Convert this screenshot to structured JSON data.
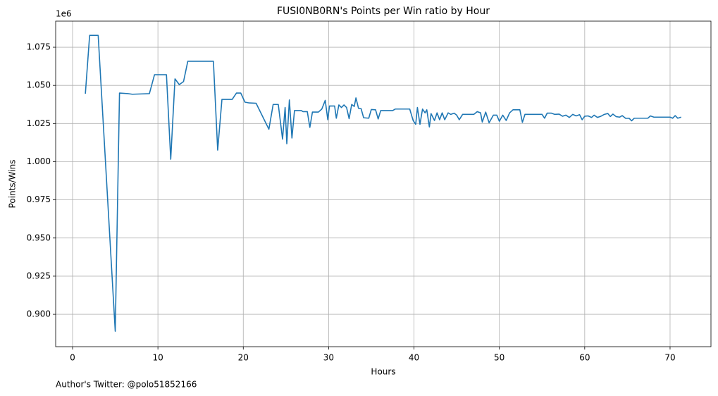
{
  "chart_data": {
    "type": "line",
    "title": "FUSI0NB0RN's Points per Win ratio by Hour",
    "x_label": "Hours",
    "y_label": "Points/Wins",
    "y_offset_label": "1e6",
    "footnote": "Author's Twitter: @polo51852166",
    "color": "#1f77b4",
    "grid": true,
    "xlim": [
      -1.98,
      74.79
    ],
    "xticks": [
      0,
      10,
      20,
      30,
      40,
      50,
      60,
      70
    ],
    "ylim": [
      0.8788,
      1.0921
    ],
    "yticks": [
      {
        "value": 0.9,
        "label": "0.900"
      },
      0.925,
      {
        "value": 0.95,
        "label": "0.950"
      },
      0.975,
      {
        "value": 1.0,
        "label": "1.000"
      },
      1.025,
      {
        "value": 1.05,
        "label": "1.050"
      },
      1.075
    ],
    "x": [
      1.5,
      2.0,
      3.0,
      5.0,
      5.5,
      6.5,
      7.0,
      9.0,
      9.6,
      11.0,
      11.5,
      12.0,
      12.5,
      13.0,
      13.5,
      16.5,
      17.0,
      17.5,
      18.7,
      19.2,
      19.7,
      20.2,
      20.7,
      21.5,
      23.0,
      23.5,
      24.1,
      24.6,
      24.9,
      25.1,
      25.4,
      25.7,
      26.0,
      26.8,
      27.0,
      27.5,
      27.8,
      28.1,
      28.8,
      29.2,
      29.6,
      29.9,
      30.1,
      30.7,
      30.9,
      31.2,
      31.5,
      31.8,
      32.1,
      32.4,
      32.7,
      33.0,
      33.2,
      33.5,
      33.8,
      34.1,
      34.7,
      35.0,
      35.5,
      35.8,
      36.1,
      37.5,
      37.8,
      39.5,
      39.9,
      40.2,
      40.4,
      40.7,
      41.0,
      41.3,
      41.5,
      41.8,
      42.0,
      42.4,
      42.7,
      43.0,
      43.3,
      43.6,
      44.0,
      44.3,
      44.7,
      45.0,
      45.3,
      45.7,
      47.0,
      47.4,
      47.8,
      48.0,
      48.4,
      48.8,
      49.3,
      49.7,
      50.0,
      50.4,
      50.8,
      51.2,
      51.6,
      52.4,
      52.7,
      53.0,
      55.0,
      55.3,
      55.6,
      56.1,
      56.5,
      57.0,
      57.4,
      57.8,
      58.2,
      58.6,
      59.0,
      59.4,
      59.7,
      60.0,
      60.4,
      60.8,
      61.1,
      61.5,
      61.9,
      62.3,
      62.7,
      63.0,
      63.3,
      63.7,
      64.1,
      64.4,
      64.8,
      65.2,
      65.5,
      65.8,
      67.4,
      67.7,
      68.1,
      70.0,
      70.3,
      70.6,
      70.9,
      71.3
    ],
    "values": [
      1.0446,
      1.0828,
      1.0828,
      0.8889,
      1.045,
      1.0446,
      1.0442,
      1.0446,
      1.057,
      1.057,
      1.0016,
      1.0543,
      1.0505,
      1.0525,
      1.0658,
      1.0658,
      1.0076,
      1.0408,
      1.0408,
      1.045,
      1.045,
      1.039,
      1.0385,
      1.0383,
      1.0213,
      1.0375,
      1.0375,
      1.0148,
      1.0355,
      1.0118,
      1.0405,
      1.0155,
      1.0335,
      1.0335,
      1.0328,
      1.0328,
      1.0225,
      1.0325,
      1.0325,
      1.0345,
      1.0402,
      1.0275,
      1.0365,
      1.0365,
      1.0285,
      1.0372,
      1.0355,
      1.0372,
      1.0355,
      1.0282,
      1.0375,
      1.0362,
      1.0418,
      1.035,
      1.0348,
      1.0288,
      1.0285,
      1.0342,
      1.034,
      1.028,
      1.0335,
      1.0335,
      1.0345,
      1.0345,
      1.027,
      1.0245,
      1.0355,
      1.0245,
      1.0345,
      1.032,
      1.034,
      1.0228,
      1.0315,
      1.027,
      1.032,
      1.0275,
      1.032,
      1.0275,
      1.032,
      1.031,
      1.0318,
      1.0305,
      1.0275,
      1.031,
      1.031,
      1.0328,
      1.032,
      1.026,
      1.0325,
      1.0255,
      1.0305,
      1.0305,
      1.0265,
      1.0305,
      1.027,
      1.032,
      1.034,
      1.034,
      1.0258,
      1.031,
      1.031,
      1.0285,
      1.0318,
      1.0318,
      1.031,
      1.0312,
      1.0298,
      1.0305,
      1.029,
      1.031,
      1.03,
      1.0308,
      1.0275,
      1.0298,
      1.03,
      1.029,
      1.0305,
      1.029,
      1.0298,
      1.031,
      1.0316,
      1.0296,
      1.0312,
      1.0295,
      1.0292,
      1.0302,
      1.0284,
      1.0285,
      1.0268,
      1.0285,
      1.0285,
      1.03,
      1.0292,
      1.0292,
      1.0285,
      1.0302,
      1.0285,
      1.0292
    ]
  }
}
